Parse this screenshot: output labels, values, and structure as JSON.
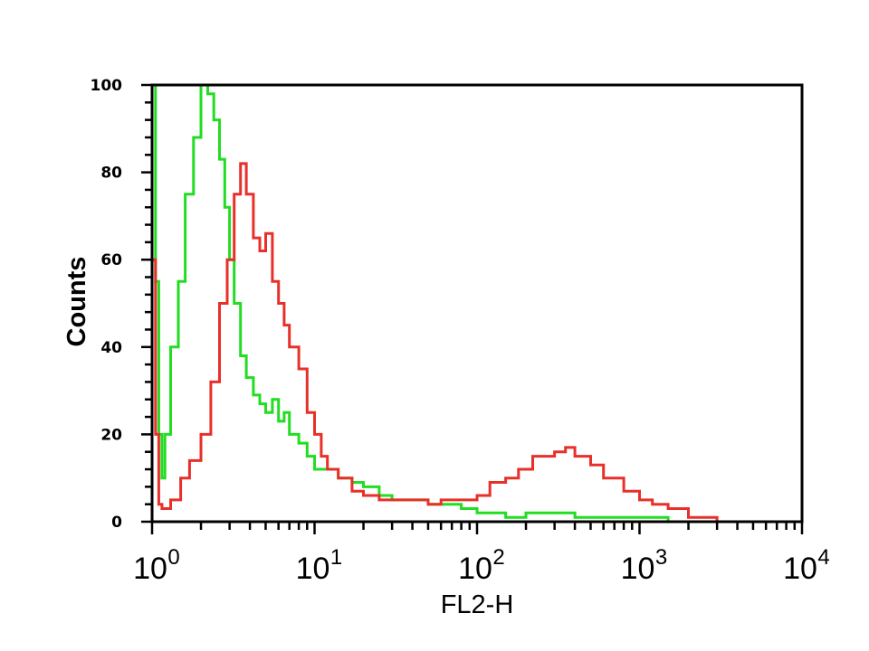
{
  "chart_data": {
    "type": "line",
    "title": "",
    "xlabel": "FL2-H",
    "ylabel": "Counts",
    "x_scale": "log",
    "xlim": [
      1,
      10000
    ],
    "ylim": [
      0,
      100
    ],
    "x_ticks": [
      {
        "base": "10",
        "exp": "0",
        "value": 1
      },
      {
        "base": "10",
        "exp": "1",
        "value": 10
      },
      {
        "base": "10",
        "exp": "2",
        "value": 100
      },
      {
        "base": "10",
        "exp": "3",
        "value": 1000
      },
      {
        "base": "10",
        "exp": "4",
        "value": 10000
      }
    ],
    "y_ticks": [
      "0",
      "20",
      "40",
      "60",
      "80",
      "100"
    ],
    "grid": false,
    "legend": "none",
    "series": [
      {
        "color": "#22dd22",
        "x": [
          1.0,
          1.05,
          1.1,
          1.15,
          1.2,
          1.3,
          1.45,
          1.6,
          1.8,
          2.0,
          2.2,
          2.4,
          2.6,
          2.8,
          3.0,
          3.2,
          3.5,
          3.8,
          4.2,
          4.6,
          5.0,
          5.5,
          6.0,
          6.5,
          7.0,
          8.0,
          9.0,
          10.0,
          12.0,
          14.0,
          17.0,
          20.0,
          25.0,
          30.0,
          40.0,
          50.0,
          60.0,
          80.0,
          100.0,
          150.0,
          200.0,
          300.0,
          400.0,
          600.0,
          800.0,
          1000.0,
          1500.0,
          2000.0,
          3000.0,
          5000.0,
          10000.0
        ],
        "y": [
          100,
          55,
          20,
          10,
          20,
          40,
          55,
          75,
          88,
          100,
          98,
          92,
          83,
          72,
          60,
          50,
          38,
          33,
          29,
          27,
          25,
          28,
          23,
          25,
          20,
          18,
          15,
          12,
          12,
          10,
          9,
          8,
          6,
          5,
          5,
          4,
          4,
          3,
          2,
          1,
          2,
          2,
          1,
          1,
          1,
          1,
          0,
          0,
          0,
          0,
          0
        ]
      },
      {
        "color": "#e8302a",
        "x": [
          1.0,
          1.05,
          1.1,
          1.15,
          1.2,
          1.3,
          1.5,
          1.7,
          2.0,
          2.3,
          2.6,
          2.9,
          3.2,
          3.5,
          3.8,
          4.2,
          4.6,
          5.0,
          5.5,
          6.0,
          6.5,
          7.0,
          8.0,
          9.0,
          10.0,
          11.0,
          12.0,
          14.0,
          17.0,
          20.0,
          25.0,
          30.0,
          40.0,
          50.0,
          60.0,
          70.0,
          80.0,
          100.0,
          120.0,
          150.0,
          180.0,
          220.0,
          260.0,
          300.0,
          350.0,
          400.0,
          500.0,
          600.0,
          800.0,
          1000.0,
          1200.0,
          1500.0,
          2000.0,
          3000.0,
          5000.0,
          10000.0
        ],
        "y": [
          60,
          20,
          4,
          3,
          3,
          5,
          10,
          14,
          20,
          32,
          50,
          60,
          75,
          82,
          75,
          65,
          62,
          66,
          55,
          50,
          45,
          40,
          35,
          25,
          20,
          15,
          12,
          10,
          7,
          6,
          5,
          5,
          5,
          4,
          5,
          5,
          5,
          6,
          9,
          10,
          12,
          15,
          15,
          16,
          17,
          15,
          13,
          10,
          7,
          5,
          4,
          3,
          1,
          0,
          0,
          0
        ]
      }
    ]
  }
}
